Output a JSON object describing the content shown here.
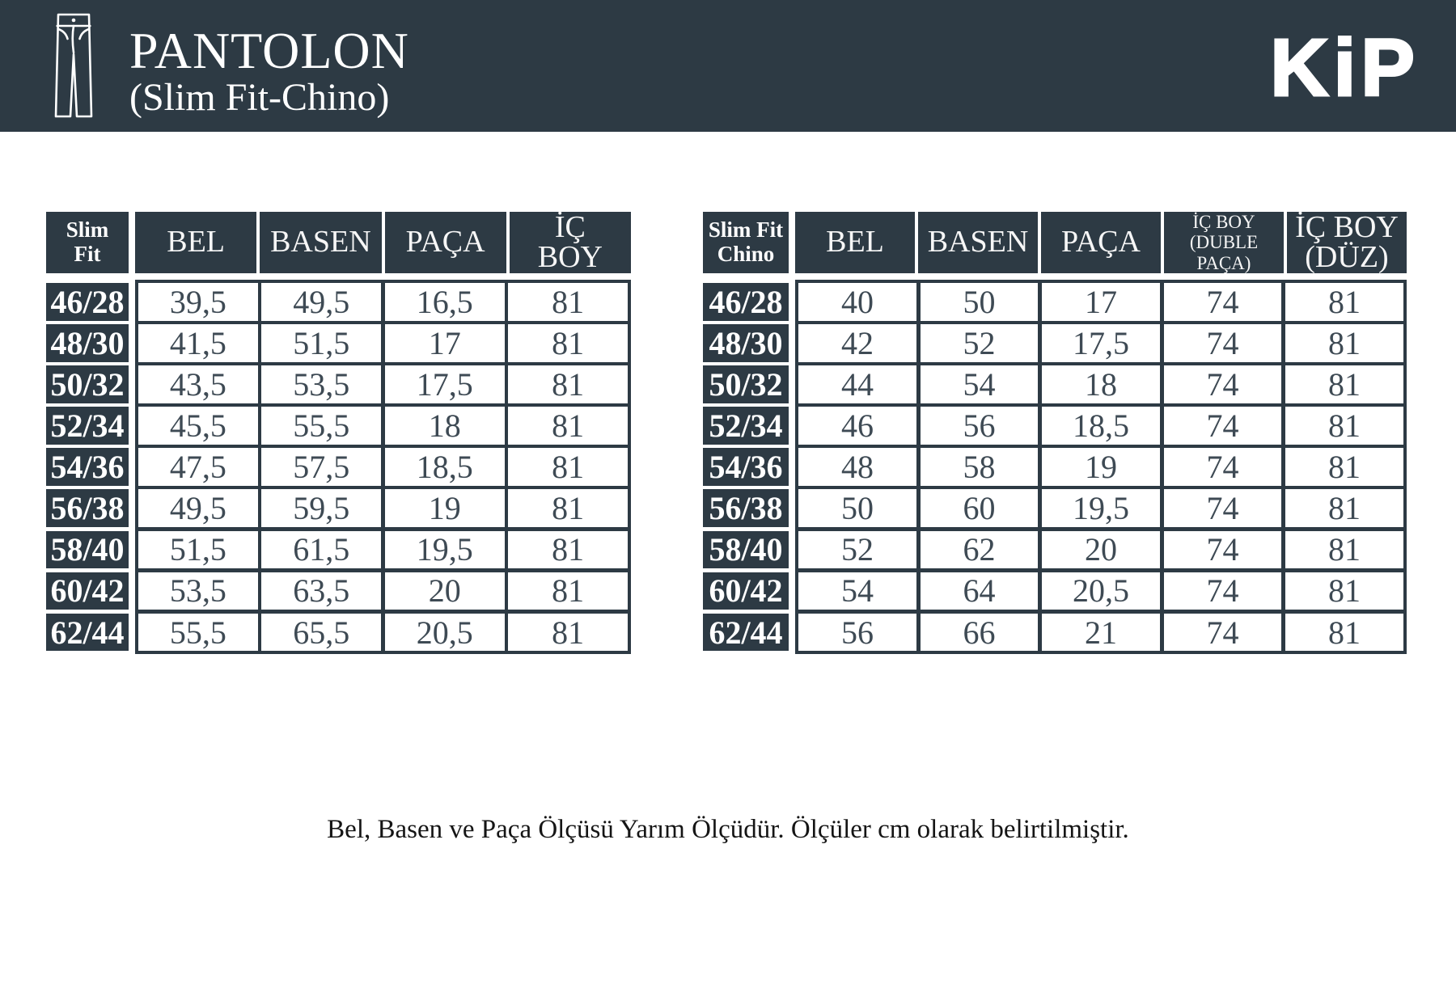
{
  "header": {
    "title": "PANTOLON",
    "subtitle": "(Slim Fit-Chino)",
    "brand": "KiP",
    "icon": "pants-icon"
  },
  "tables": [
    {
      "corner": "Slim\nFit",
      "columns": [
        {
          "label": "BEL"
        },
        {
          "label": "BASEN"
        },
        {
          "label": "PAÇA"
        },
        {
          "label": "İÇ\nBOY"
        }
      ],
      "rows": [
        {
          "size": "46/28",
          "values": [
            "39,5",
            "49,5",
            "16,5",
            "81"
          ]
        },
        {
          "size": "48/30",
          "values": [
            "41,5",
            "51,5",
            "17",
            "81"
          ]
        },
        {
          "size": "50/32",
          "values": [
            "43,5",
            "53,5",
            "17,5",
            "81"
          ]
        },
        {
          "size": "52/34",
          "values": [
            "45,5",
            "55,5",
            "18",
            "81"
          ]
        },
        {
          "size": "54/36",
          "values": [
            "47,5",
            "57,5",
            "18,5",
            "81"
          ]
        },
        {
          "size": "56/38",
          "values": [
            "49,5",
            "59,5",
            "19",
            "81"
          ]
        },
        {
          "size": "58/40",
          "values": [
            "51,5",
            "61,5",
            "19,5",
            "81"
          ]
        },
        {
          "size": "60/42",
          "values": [
            "53,5",
            "63,5",
            "20",
            "81"
          ]
        },
        {
          "size": "62/44",
          "values": [
            "55,5",
            "65,5",
            "20,5",
            "81"
          ]
        }
      ]
    },
    {
      "corner": "Slim Fit\nChino",
      "columns": [
        {
          "label": "BEL"
        },
        {
          "label": "BASEN"
        },
        {
          "label": "PAÇA"
        },
        {
          "label": "İÇ BOY\n(DUBLE PAÇA)",
          "small": true
        },
        {
          "label": "İÇ BOY\n(DÜZ)"
        }
      ],
      "rows": [
        {
          "size": "46/28",
          "values": [
            "40",
            "50",
            "17",
            "74",
            "81"
          ]
        },
        {
          "size": "48/30",
          "values": [
            "42",
            "52",
            "17,5",
            "74",
            "81"
          ]
        },
        {
          "size": "50/32",
          "values": [
            "44",
            "54",
            "18",
            "74",
            "81"
          ]
        },
        {
          "size": "52/34",
          "values": [
            "46",
            "56",
            "18,5",
            "74",
            "81"
          ]
        },
        {
          "size": "54/36",
          "values": [
            "48",
            "58",
            "19",
            "74",
            "81"
          ]
        },
        {
          "size": "56/38",
          "values": [
            "50",
            "60",
            "19,5",
            "74",
            "81"
          ]
        },
        {
          "size": "58/40",
          "values": [
            "52",
            "62",
            "20",
            "74",
            "81"
          ]
        },
        {
          "size": "60/42",
          "values": [
            "54",
            "64",
            "20,5",
            "74",
            "81"
          ]
        },
        {
          "size": "62/44",
          "values": [
            "56",
            "66",
            "21",
            "74",
            "81"
          ]
        }
      ]
    }
  ],
  "footer": {
    "note": "Bel, Basen ve Paça Ölçüsü Yarım Ölçüdür. Ölçüler cm olarak belirtilmiştir."
  },
  "colors": {
    "dark": "#2d3a44",
    "cell_text": "#3e4a54",
    "background": "#ffffff"
  }
}
